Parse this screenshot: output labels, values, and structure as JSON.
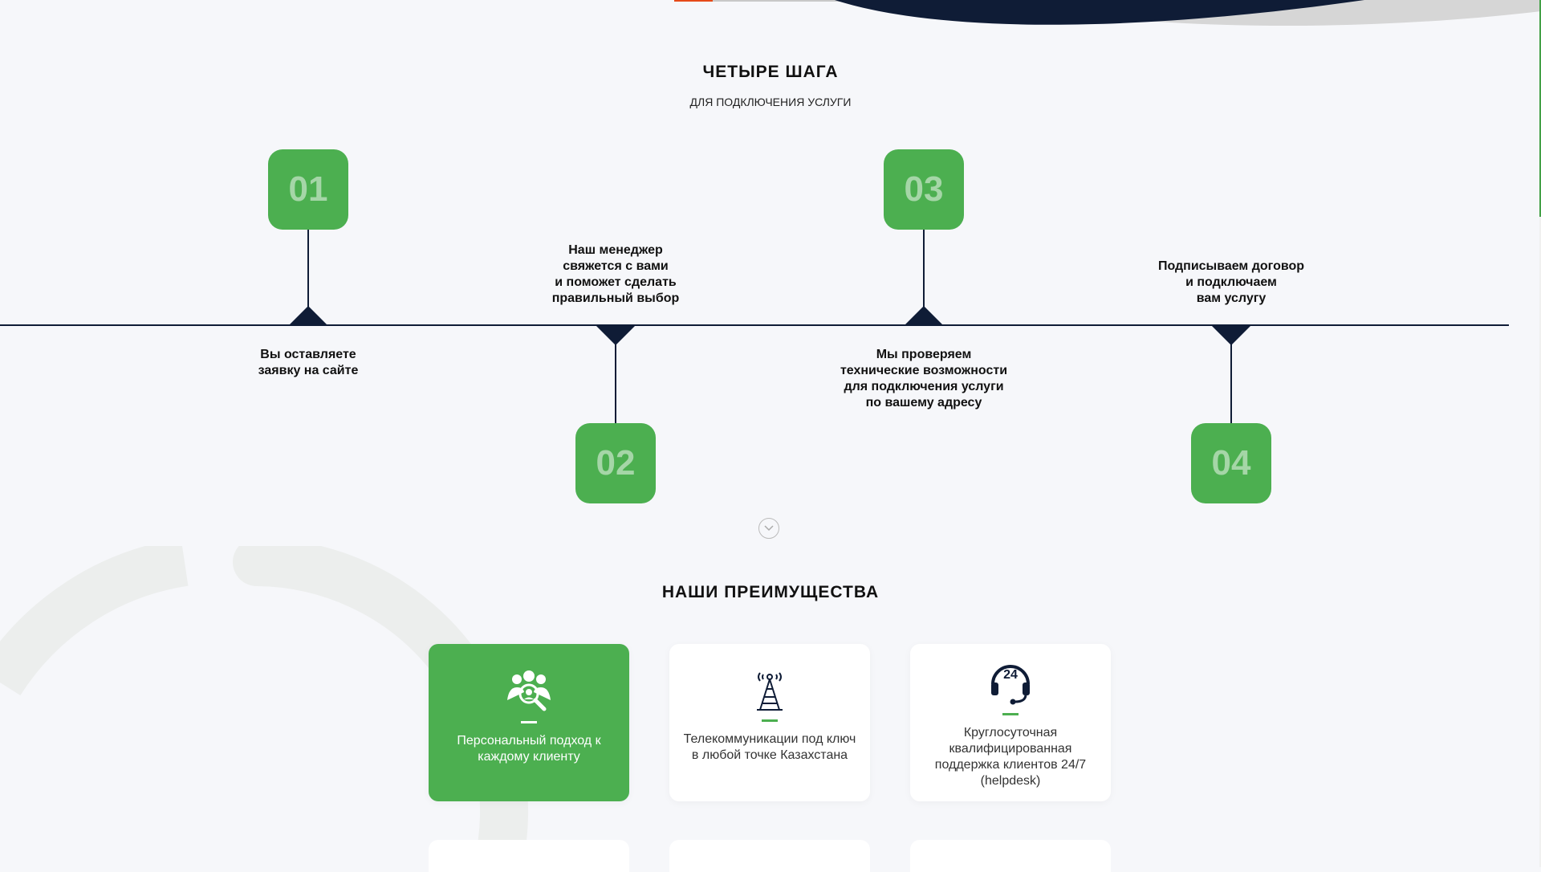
{
  "colors": {
    "accent": "#4caf50",
    "navy": "#0f1c36",
    "background": "#f6f7fa",
    "step_number": "#a5d6a7"
  },
  "steps_section": {
    "title": "ЧЕТЫРЕ ШАГА",
    "subtitle": "ДЛЯ ПОДКЛЮЧЕНИЯ УСЛУГИ",
    "steps": [
      {
        "number": "01",
        "text": "Вы оставляете\nзаявку на сайте"
      },
      {
        "number": "02",
        "text": "Наш менеджер\nсвяжется с вами\nи поможет сделать\nправильный выбор"
      },
      {
        "number": "03",
        "text": "Мы проверяем\nтехнические возможности\nдля подключения услуги\nпо вашему адресу"
      },
      {
        "number": "04",
        "text": "Подписываем договор\nи подключаем\nвам услугу"
      }
    ]
  },
  "scroll_down": {
    "icon": "chevron-down-circle-icon"
  },
  "advantages_section": {
    "title": "НАШИ ПРЕИМУЩЕСТВА",
    "cards": [
      {
        "icon": "people-search-icon",
        "label": "Персональный подход к каждому клиенту",
        "active": true
      },
      {
        "icon": "radio-tower-icon",
        "label": "Телекоммуникации под ключ в любой точке Казахстана",
        "active": false
      },
      {
        "icon": "headset-24-icon",
        "label": "Круглосуточная квалифицированная поддержка клиентов 24/7 (helpdesk)",
        "active": false
      }
    ]
  }
}
